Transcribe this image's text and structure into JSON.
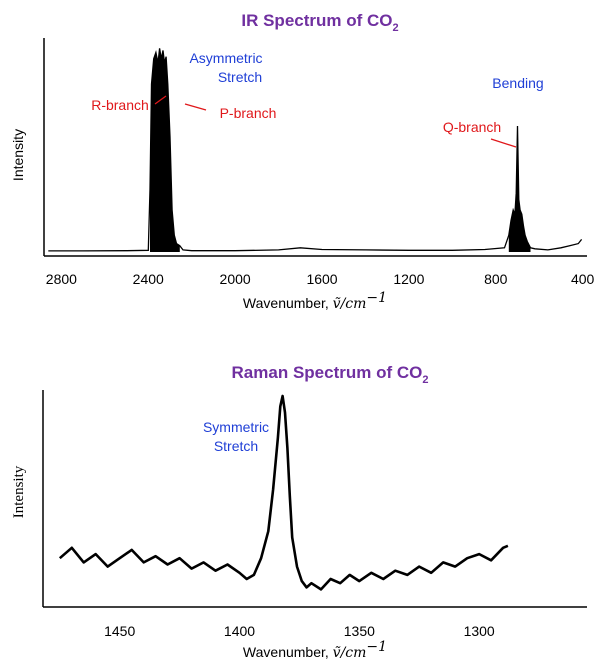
{
  "chart_data": [
    {
      "type": "line",
      "title": "IR Spectrum of CO",
      "title_subscript": "2",
      "xlabel": "Wavenumber, ",
      "xlabel_math": "ṽ/cm",
      "xlabel_exp": "−1",
      "ylabel": "Intensity",
      "xlim": [
        2880,
        380
      ],
      "ylim": [
        0,
        1.0
      ],
      "x_reversed": true,
      "xticks": [
        2800,
        2400,
        2000,
        1600,
        1200,
        800,
        400
      ],
      "xtick_labels": [
        "2800",
        "2400",
        "2000",
        "1600",
        "1200",
        "800",
        "400"
      ],
      "series": [
        {
          "color": "#000000",
          "x": [
            2860,
            2700,
            2500,
            2400,
            2392,
            2385,
            2375,
            2365,
            2355,
            2348,
            2340,
            2332,
            2325,
            2318,
            2310,
            2300,
            2290,
            2280,
            2270,
            2255,
            2240,
            2200,
            2000,
            1800,
            1700,
            1600,
            1400,
            1200,
            1000,
            850,
            760,
            740,
            730,
            720,
            712,
            706,
            700,
            694,
            688,
            680,
            672,
            665,
            655,
            640,
            620,
            560,
            500,
            460,
            420,
            405
          ],
          "y": [
            0.005,
            0.005,
            0.006,
            0.008,
            0.3,
            0.8,
            0.92,
            0.95,
            0.9,
            0.97,
            0.92,
            0.96,
            0.9,
            0.93,
            0.8,
            0.55,
            0.2,
            0.08,
            0.04,
            0.03,
            0.01,
            0.006,
            0.006,
            0.01,
            0.02,
            0.012,
            0.01,
            0.008,
            0.008,
            0.012,
            0.02,
            0.08,
            0.15,
            0.2,
            0.18,
            0.28,
            0.6,
            0.25,
            0.2,
            0.18,
            0.12,
            0.08,
            0.05,
            0.02,
            0.015,
            0.01,
            0.02,
            0.03,
            0.04,
            0.06
          ]
        }
      ],
      "annotations": [
        {
          "text": "Asymmetric",
          "color": "#1f3fd6"
        },
        {
          "text": "Stretch",
          "color": "#1f3fd6"
        },
        {
          "text": "Bending",
          "color": "#1f3fd6"
        },
        {
          "text": "R-branch",
          "color": "#e0181b"
        },
        {
          "text": "P-branch",
          "color": "#e0181b"
        },
        {
          "text": "Q-branch",
          "color": "#e0181b"
        }
      ]
    },
    {
      "type": "line",
      "title": "Raman Spectrum of CO",
      "title_subscript": "2",
      "xlabel": "Wavenumber, ",
      "xlabel_math": "ṽ/cm",
      "xlabel_exp": "−1",
      "ylabel": "Intensity",
      "xlim": [
        1482,
        1255
      ],
      "ylim": [
        0,
        1.0
      ],
      "x_reversed": true,
      "xticks": [
        1450,
        1400,
        1350,
        1300
      ],
      "xtick_labels": [
        "1450",
        "1400",
        "1350",
        "1300"
      ],
      "series": [
        {
          "color": "#000000",
          "x": [
            1475,
            1470,
            1465,
            1460,
            1455,
            1450,
            1445,
            1440,
            1435,
            1430,
            1425,
            1420,
            1415,
            1410,
            1405,
            1400,
            1397,
            1394,
            1391,
            1388,
            1386,
            1384,
            1383,
            1382,
            1381,
            1380,
            1379,
            1378,
            1376,
            1374,
            1372,
            1370,
            1366,
            1362,
            1358,
            1354,
            1350,
            1345,
            1340,
            1335,
            1330,
            1325,
            1320,
            1315,
            1310,
            1305,
            1300,
            1295,
            1290,
            1288
          ],
          "y": [
            0.22,
            0.27,
            0.2,
            0.24,
            0.18,
            0.22,
            0.26,
            0.2,
            0.23,
            0.19,
            0.22,
            0.17,
            0.2,
            0.16,
            0.19,
            0.15,
            0.12,
            0.14,
            0.22,
            0.35,
            0.55,
            0.8,
            0.95,
            1.0,
            0.92,
            0.75,
            0.52,
            0.32,
            0.18,
            0.11,
            0.08,
            0.1,
            0.07,
            0.12,
            0.1,
            0.14,
            0.11,
            0.15,
            0.12,
            0.16,
            0.14,
            0.18,
            0.15,
            0.2,
            0.18,
            0.22,
            0.24,
            0.21,
            0.27,
            0.28
          ]
        }
      ],
      "annotations": [
        {
          "text": "Symmetric",
          "color": "#1f3fd6"
        },
        {
          "text": "Stretch",
          "color": "#1f3fd6"
        }
      ]
    }
  ]
}
